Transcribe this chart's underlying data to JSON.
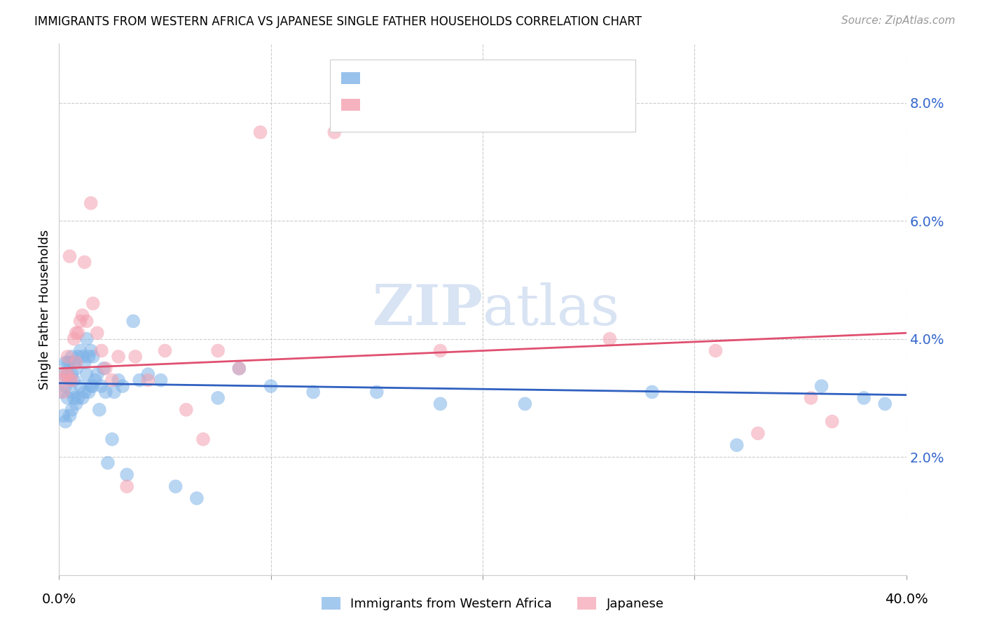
{
  "title": "IMMIGRANTS FROM WESTERN AFRICA VS JAPANESE SINGLE FATHER HOUSEHOLDS CORRELATION CHART",
  "source": "Source: ZipAtlas.com",
  "ylabel": "Single Father Households",
  "yticks": [
    0.0,
    0.02,
    0.04,
    0.06,
    0.08
  ],
  "ytick_labels": [
    "",
    "2.0%",
    "4.0%",
    "6.0%",
    "8.0%"
  ],
  "xlim": [
    0.0,
    0.4
  ],
  "ylim": [
    0.0,
    0.09
  ],
  "color_blue": "#7EB3E8",
  "color_pink": "#F4A0B0",
  "color_blue_line": "#3060C0",
  "color_pink_line": "#E05070",
  "color_blue_text": "#3366CC",
  "color_pink_text": "#E05070",
  "watermark_color": "#C8D8EE",
  "blue_scatter_x": [
    0.001,
    0.002,
    0.002,
    0.003,
    0.003,
    0.003,
    0.004,
    0.004,
    0.004,
    0.005,
    0.005,
    0.005,
    0.006,
    0.006,
    0.006,
    0.006,
    0.007,
    0.007,
    0.007,
    0.008,
    0.008,
    0.009,
    0.009,
    0.01,
    0.01,
    0.011,
    0.011,
    0.012,
    0.012,
    0.013,
    0.013,
    0.014,
    0.014,
    0.015,
    0.015,
    0.016,
    0.016,
    0.017,
    0.018,
    0.019,
    0.02,
    0.021,
    0.022,
    0.023,
    0.025,
    0.026,
    0.028,
    0.03,
    0.032,
    0.035,
    0.038,
    0.042,
    0.048,
    0.055,
    0.065,
    0.075,
    0.085,
    0.1,
    0.12,
    0.15,
    0.18,
    0.22,
    0.28,
    0.32,
    0.36,
    0.38,
    0.39
  ],
  "blue_scatter_y": [
    0.031,
    0.027,
    0.034,
    0.026,
    0.032,
    0.036,
    0.03,
    0.034,
    0.036,
    0.027,
    0.033,
    0.036,
    0.028,
    0.031,
    0.034,
    0.037,
    0.03,
    0.033,
    0.036,
    0.029,
    0.035,
    0.03,
    0.037,
    0.032,
    0.038,
    0.03,
    0.037,
    0.031,
    0.036,
    0.034,
    0.04,
    0.031,
    0.037,
    0.032,
    0.038,
    0.032,
    0.037,
    0.033,
    0.034,
    0.028,
    0.032,
    0.035,
    0.031,
    0.019,
    0.023,
    0.031,
    0.033,
    0.032,
    0.017,
    0.043,
    0.033,
    0.034,
    0.033,
    0.015,
    0.013,
    0.03,
    0.035,
    0.032,
    0.031,
    0.031,
    0.029,
    0.029,
    0.031,
    0.022,
    0.032,
    0.03,
    0.029
  ],
  "pink_scatter_x": [
    0.001,
    0.002,
    0.003,
    0.004,
    0.004,
    0.005,
    0.005,
    0.006,
    0.007,
    0.008,
    0.008,
    0.009,
    0.01,
    0.011,
    0.012,
    0.013,
    0.015,
    0.016,
    0.018,
    0.02,
    0.022,
    0.025,
    0.028,
    0.032,
    0.036,
    0.042,
    0.05,
    0.06,
    0.068,
    0.075,
    0.085,
    0.095,
    0.13,
    0.18,
    0.26,
    0.31,
    0.33,
    0.355,
    0.365
  ],
  "pink_scatter_y": [
    0.033,
    0.031,
    0.034,
    0.034,
    0.037,
    0.054,
    0.033,
    0.033,
    0.04,
    0.041,
    0.036,
    0.041,
    0.043,
    0.044,
    0.053,
    0.043,
    0.063,
    0.046,
    0.041,
    0.038,
    0.035,
    0.033,
    0.037,
    0.015,
    0.037,
    0.033,
    0.038,
    0.028,
    0.023,
    0.038,
    0.035,
    0.075,
    0.075,
    0.038,
    0.04,
    0.038,
    0.024,
    0.03,
    0.026
  ],
  "blue_line_x": [
    0.0,
    0.4
  ],
  "blue_line_y": [
    0.0325,
    0.0305
  ],
  "pink_line_x": [
    0.0,
    0.4
  ],
  "pink_line_y": [
    0.035,
    0.041
  ]
}
